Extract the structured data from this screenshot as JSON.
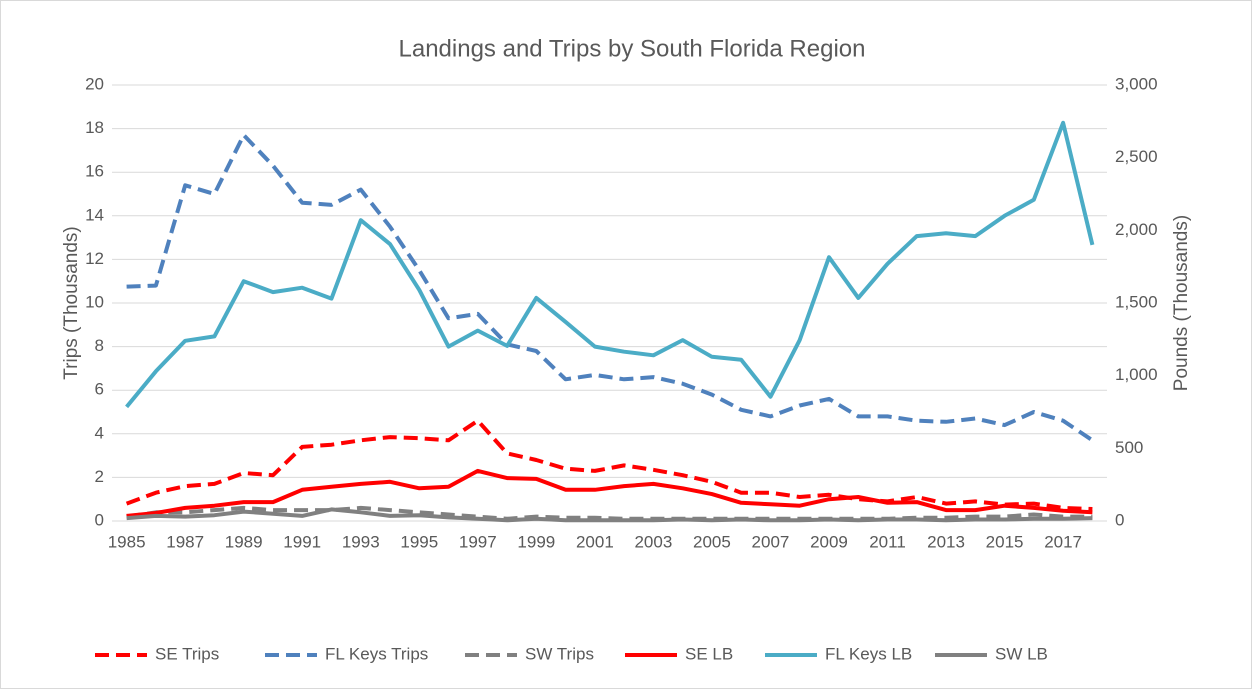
{
  "chart_data": {
    "type": "line",
    "title": "Landings and Trips by South Florida Region",
    "y_label": "Trips (Thousands)",
    "y2_label": "Pounds (Thousands)",
    "categories": [
      "1985",
      null,
      "1987",
      null,
      "1989",
      null,
      "1991",
      null,
      "1993",
      null,
      "1995",
      null,
      "1997",
      null,
      "1999",
      null,
      "2001",
      null,
      "2003",
      null,
      "2005",
      null,
      "2007",
      null,
      "2009",
      null,
      "2011",
      null,
      "2013",
      null,
      "2015",
      null,
      "2017",
      null
    ],
    "ylim": [
      0,
      20
    ],
    "yticks": [
      0,
      2,
      4,
      6,
      8,
      10,
      12,
      14,
      16,
      18,
      20
    ],
    "y2lim": [
      0,
      3000
    ],
    "y2ticks": [
      0,
      500,
      {
        "value": 1000,
        "label": "1,000"
      },
      {
        "value": 1500,
        "label": "1,500"
      },
      {
        "value": 2000,
        "label": "2,000"
      },
      {
        "value": 2500,
        "label": "2,500"
      },
      {
        "value": 3000,
        "label": "3,000"
      }
    ],
    "grid": true,
    "legend": "bottom",
    "series": [
      {
        "name": "SE Trips",
        "color": "#ff0000",
        "dash": true,
        "values": [
          0.8,
          1.3,
          1.6,
          1.7,
          2.2,
          2.1,
          3.4,
          3.5,
          3.7,
          3.85,
          3.8,
          3.7,
          4.6,
          3.1,
          2.8,
          2.4,
          2.3,
          2.55,
          2.35,
          2.1,
          1.8,
          1.3,
          1.3,
          1.1,
          1.2,
          1.0,
          0.9,
          1.1,
          0.8,
          0.9,
          0.75,
          0.8,
          0.6,
          0.55
        ]
      },
      {
        "name": "FL Keys Trips",
        "color": "#4f81bd",
        "dash": true,
        "values": [
          10.75,
          10.8,
          15.4,
          15.0,
          17.7,
          16.3,
          14.6,
          14.5,
          15.2,
          13.5,
          11.5,
          9.3,
          9.5,
          8.1,
          7.8,
          6.5,
          6.7,
          6.5,
          6.6,
          6.3,
          5.8,
          5.1,
          4.8,
          5.3,
          5.6,
          4.8,
          4.8,
          4.6,
          4.55,
          4.7,
          4.4,
          5.0,
          4.6,
          3.7
        ]
      },
      {
        "name": "SW Trips",
        "color": "#808080",
        "dash": true,
        "values": [
          0.2,
          0.4,
          0.4,
          0.5,
          0.6,
          0.5,
          0.5,
          0.5,
          0.6,
          0.5,
          0.4,
          0.3,
          0.2,
          0.1,
          0.2,
          0.15,
          0.15,
          0.1,
          0.1,
          0.1,
          0.1,
          0.1,
          0.1,
          0.1,
          0.1,
          0.1,
          0.1,
          0.15,
          0.15,
          0.2,
          0.2,
          0.3,
          0.2,
          0.2
        ]
      },
      {
        "name": "SE LB",
        "color": "#ff0000",
        "dash": false,
        "axis": "y2",
        "values": [
          35,
          55,
          90,
          105,
          130,
          130,
          215,
          235,
          255,
          270,
          225,
          235,
          345,
          295,
          290,
          215,
          215,
          240,
          255,
          225,
          185,
          125,
          115,
          105,
          150,
          165,
          125,
          130,
          75,
          75,
          105,
          90,
          70,
          60
        ]
      },
      {
        "name": "FL Keys LB",
        "color": "#4bacc6",
        "dash": false,
        "axis": "y2",
        "values": [
          785,
          1030,
          1240,
          1270,
          1650,
          1575,
          1605,
          1530,
          2070,
          1905,
          1590,
          1200,
          1310,
          1205,
          1535,
          1370,
          1200,
          1165,
          1140,
          1245,
          1130,
          1110,
          855,
          1245,
          1815,
          1535,
          1770,
          1960,
          1980,
          1960,
          2100,
          2210,
          2740,
          1900
        ]
      },
      {
        "name": "SW LB",
        "color": "#808080",
        "dash": false,
        "axis": "y2",
        "values": [
          20,
          35,
          30,
          40,
          65,
          50,
          35,
          80,
          60,
          35,
          40,
          25,
          15,
          5,
          15,
          5,
          5,
          5,
          5,
          10,
          5,
          10,
          5,
          5,
          10,
          5,
          10,
          10,
          5,
          10,
          10,
          15,
          15,
          20
        ]
      }
    ]
  }
}
